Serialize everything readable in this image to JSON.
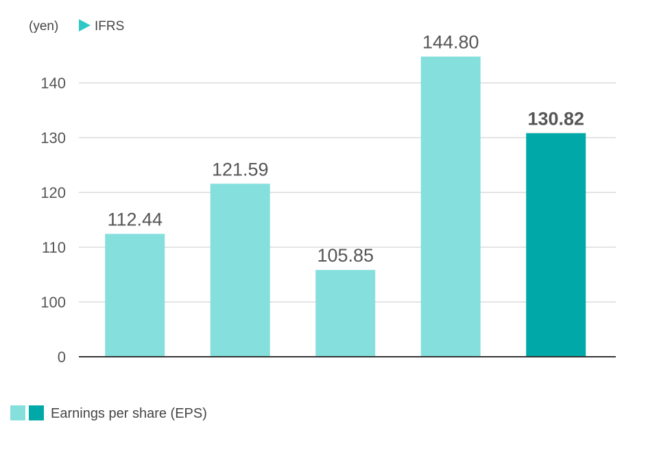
{
  "chart_data": {
    "type": "bar",
    "unit_label": "(yen)",
    "standard_label": "IFRS",
    "categories": [
      "",
      "",
      "",
      "",
      ""
    ],
    "values": [
      112.44,
      121.59,
      105.85,
      144.8,
      130.82
    ],
    "value_labels": [
      "112.44",
      "121.59",
      "105.85",
      "144.80",
      "130.82"
    ],
    "highlight_index": 4,
    "y_ticks": [
      0,
      100,
      110,
      120,
      130,
      140
    ],
    "y_axis_break": true,
    "ylim": [
      0,
      150
    ],
    "grid": true,
    "legend": {
      "label": "Earnings per share (EPS)",
      "placement": "bottom-left"
    },
    "colors": {
      "bar": "#85dfdd",
      "bar_highlight": "#00a9a7",
      "ifrs_marker": "#2ec9c6",
      "grid": "#c8c8c8",
      "axis": "#333333"
    }
  }
}
